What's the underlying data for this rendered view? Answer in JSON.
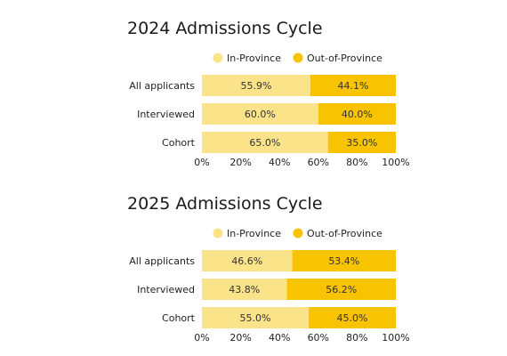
{
  "colors": {
    "in_province": "#FBE38A",
    "out_of_province": "#F8C300",
    "text": "#222222"
  },
  "chart_data": [
    {
      "type": "bar",
      "orientation": "horizontal",
      "stacked": true,
      "title": "2024 Admissions Cycle",
      "categories": [
        "All applicants",
        "Interviewed",
        "Cohort"
      ],
      "series": [
        {
          "name": "In-Province",
          "values": [
            55.9,
            60.0,
            65.0
          ],
          "labels": [
            "55.9%",
            "60.0%",
            "65.0%"
          ]
        },
        {
          "name": "Out-of-Province",
          "values": [
            44.1,
            40.0,
            35.0
          ],
          "labels": [
            "44.1%",
            "40.0%",
            "35.0%"
          ]
        }
      ],
      "xlim": [
        0,
        100
      ],
      "xticks": [
        "0%",
        "20%",
        "40%",
        "60%",
        "80%",
        "100%"
      ],
      "grid": false,
      "legend": "top"
    },
    {
      "type": "bar",
      "orientation": "horizontal",
      "stacked": true,
      "title": "2025 Admissions Cycle",
      "categories": [
        "All applicants",
        "Interviewed",
        "Cohort"
      ],
      "series": [
        {
          "name": "In-Province",
          "values": [
            46.6,
            43.8,
            55.0
          ],
          "labels": [
            "46.6%",
            "43.8%",
            "55.0%"
          ]
        },
        {
          "name": "Out-of-Province",
          "values": [
            53.4,
            56.2,
            45.0
          ],
          "labels": [
            "53.4%",
            "56.2%",
            "45.0%"
          ]
        }
      ],
      "xlim": [
        0,
        100
      ],
      "xticks": [
        "0%",
        "20%",
        "40%",
        "60%",
        "80%",
        "100%"
      ],
      "grid": false,
      "legend": "top"
    }
  ]
}
